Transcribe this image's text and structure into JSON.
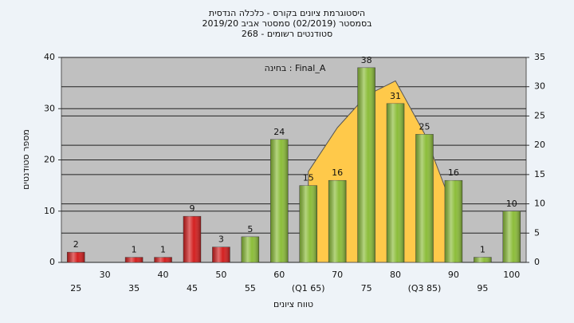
{
  "chart_data": {
    "type": "bar",
    "title": [
      "היסטוגרמת ציונים בקורס - כלכלה הנדסית",
      "בסמסטר  (02/2019)  סמסטר אביב 2019/20",
      "סטודנטים רשומים - 268"
    ],
    "annotation": "בחינה : Final_A",
    "x_label": "טווח ציונים",
    "y_label": "מספר סטודנטים",
    "categories": [
      "25",
      "30",
      "35",
      "40",
      "45",
      "50",
      "55",
      "60",
      "(Q1 65)",
      "70",
      "75",
      "80",
      "(Q3 85)",
      "90",
      "95",
      "100"
    ],
    "values": [
      2,
      null,
      1,
      1,
      9,
      3,
      5,
      24,
      15,
      16,
      38,
      31,
      25,
      16,
      1,
      10
    ],
    "colors": [
      "#d42020",
      null,
      "#d42020",
      "#d42020",
      "#d42020",
      "#d42020",
      "#8cbd3a",
      "#8cbd3a",
      "#8cbd3a",
      "#8cbd3a",
      "#8cbd3a",
      "#8cbd3a",
      "#8cbd3a",
      "#8cbd3a",
      "#8cbd3a",
      "#8cbd3a"
    ],
    "curve": {
      "axis": "y2",
      "color": "#ffc94a",
      "values": [
        null,
        null,
        null,
        null,
        null,
        null,
        null,
        null,
        15.5,
        23,
        28.5,
        31,
        22,
        9,
        null,
        null
      ]
    },
    "ylim": [
      0,
      40
    ],
    "yticks": [
      0,
      10,
      20,
      30,
      40
    ],
    "y2lim": [
      0,
      35
    ],
    "y2ticks": [
      0,
      5,
      10,
      15,
      20,
      25,
      30,
      35
    ],
    "grid": true
  }
}
